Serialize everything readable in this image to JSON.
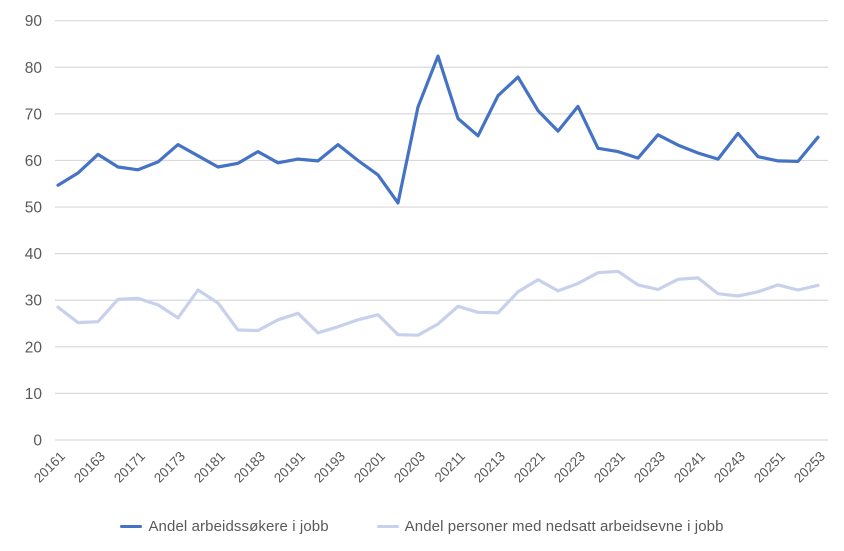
{
  "chart_data": {
    "type": "line",
    "title": "",
    "xlabel": "",
    "ylabel": "",
    "grid": "horizontal",
    "legend_position": "bottom",
    "y_axis": {
      "min": 0,
      "max": 90,
      "step": 10,
      "tick_labels": [
        "0",
        "10",
        "20",
        "30",
        "40",
        "50",
        "60",
        "70",
        "80",
        "90"
      ]
    },
    "categories": [
      "20161",
      "20162",
      "20163",
      "20164",
      "20171",
      "20172",
      "20173",
      "20174",
      "20181",
      "20182",
      "20183",
      "20184",
      "20191",
      "20192",
      "20193",
      "20194",
      "20201",
      "20202",
      "20203",
      "20204",
      "20211",
      "20212",
      "20213",
      "20214",
      "20221",
      "20222",
      "20223",
      "20224",
      "20231",
      "20232",
      "20233",
      "20234",
      "20241",
      "20242",
      "20243",
      "20244",
      "20251",
      "20252",
      "20253"
    ],
    "x_tick_labels_shown": [
      "20161",
      "20163",
      "20171",
      "20173",
      "20181",
      "20183",
      "20191",
      "20193",
      "20201",
      "20203",
      "20211",
      "20213",
      "20221",
      "20223",
      "20231",
      "20233",
      "20241",
      "20243",
      "20251",
      "20253"
    ],
    "series": [
      {
        "name": "Andel arbeidssøkere i jobb",
        "color": "#4472C4",
        "values": [
          54.7,
          57.3,
          61.3,
          58.6,
          58.0,
          59.7,
          63.4,
          61.0,
          58.6,
          59.4,
          61.9,
          59.5,
          60.3,
          59.9,
          63.4,
          60.0,
          56.9,
          50.9,
          71.5,
          82.4,
          69.0,
          65.3,
          73.9,
          77.9,
          70.7,
          66.3,
          71.6,
          62.6,
          61.9,
          60.5,
          65.5,
          63.3,
          61.6,
          60.3,
          65.8,
          60.8,
          59.9,
          59.8,
          65.0
        ]
      },
      {
        "name": "Andel personer med nedsatt arbeidsevne i jobb",
        "color": "#C7D1EB",
        "values": [
          28.5,
          25.2,
          25.4,
          30.2,
          30.4,
          29.0,
          26.2,
          32.2,
          29.4,
          23.6,
          23.5,
          25.8,
          27.2,
          23.0,
          24.3,
          25.8,
          26.9,
          22.6,
          22.5,
          24.9,
          28.7,
          27.4,
          27.3,
          31.8,
          34.4,
          32.0,
          33.6,
          35.9,
          36.2,
          33.3,
          32.3,
          34.5,
          34.8,
          31.4,
          30.9,
          31.8,
          33.3,
          32.2,
          33.2
        ]
      }
    ]
  },
  "legend": {
    "items": [
      {
        "label": "Andel arbeidssøkere i jobb",
        "color": "#4472C4"
      },
      {
        "label": "Andel personer med nedsatt arbeidsevne i jobb",
        "color": "#C7D1EB"
      }
    ]
  },
  "colors": {
    "axis_text": "#595959",
    "gridline": "#D9D9D9",
    "background": "#FFFFFF"
  }
}
